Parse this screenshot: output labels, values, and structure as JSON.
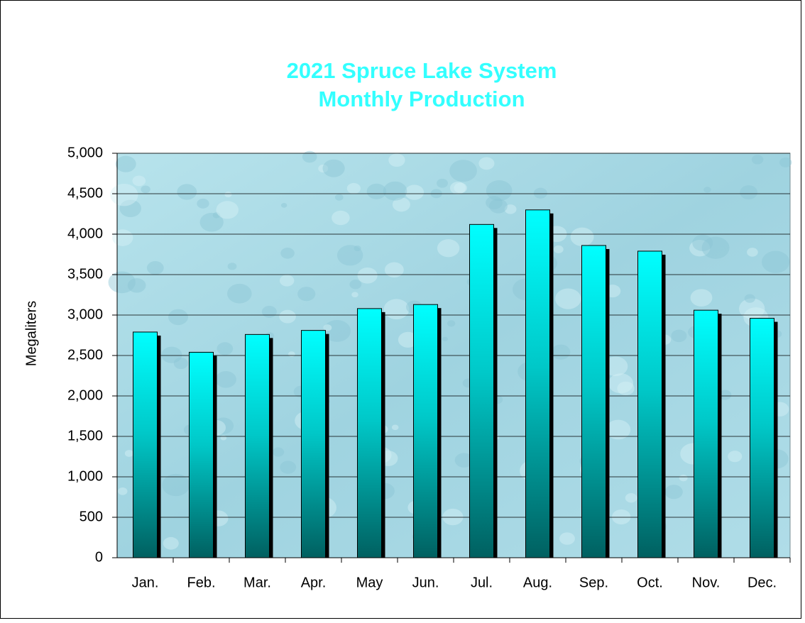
{
  "chart_data": {
    "type": "bar",
    "title": [
      "2021 Spruce Lake System",
      "Monthly Production"
    ],
    "y_label": "Megaliters",
    "categories": [
      "Jan.",
      "Feb.",
      "Mar.",
      "Apr.",
      "May",
      "Jun.",
      "Jul.",
      "Aug.",
      "Sep.",
      "Oct.",
      "Nov.",
      "Dec."
    ],
    "values": [
      2790,
      2540,
      2760,
      2810,
      3080,
      3130,
      4120,
      4300,
      3860,
      3790,
      3060,
      2960
    ],
    "color": "#00ffff",
    "ylim": [
      0,
      5000
    ],
    "yticks": [
      0,
      500,
      {
        "value": 1000,
        "label": "1,000"
      },
      {
        "value": 1500,
        "label": "1,500"
      },
      {
        "value": 2000,
        "label": "2,000"
      },
      {
        "value": 2500,
        "label": "2,500"
      },
      {
        "value": 3000,
        "label": "3,000"
      },
      {
        "value": 3500,
        "label": "3,500"
      },
      {
        "value": 4000,
        "label": "4,000"
      },
      {
        "value": 4500,
        "label": "4,500"
      },
      {
        "value": 5000,
        "label": "5,000"
      }
    ],
    "grid": true
  }
}
